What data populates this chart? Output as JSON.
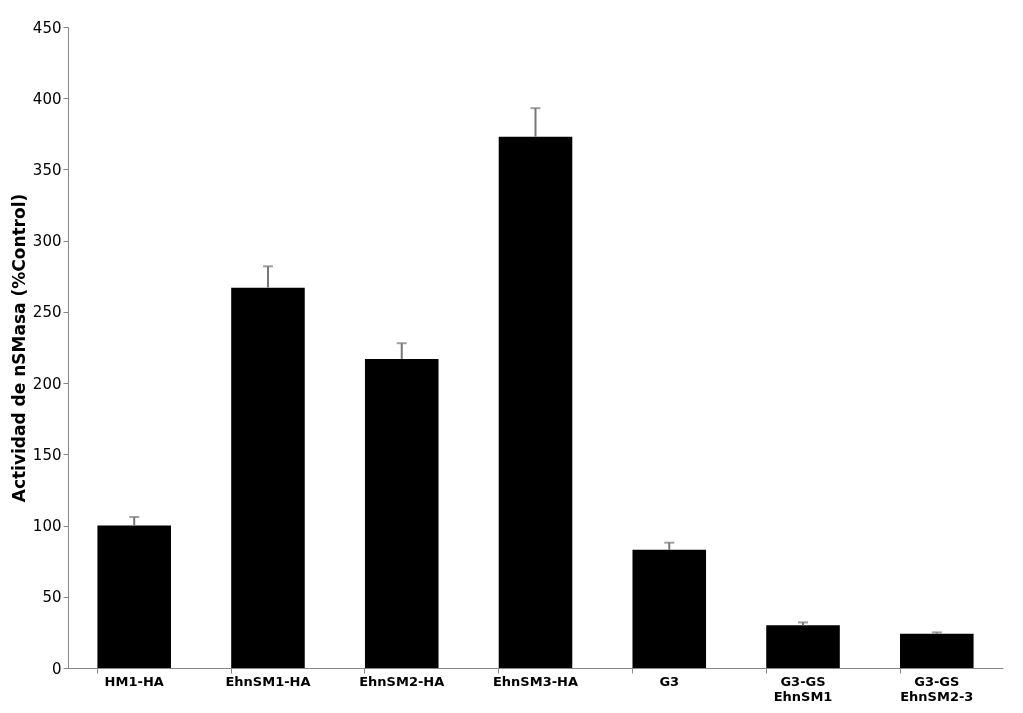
{
  "chart_data": {
    "type": "bar",
    "ylabel": "Actividad de nSMasa (%Control)",
    "categories": [
      "HM1-HA",
      "EhnSM1-HA",
      "EhnSM2-HA",
      "EhnSM3-HA",
      "G3",
      "G3-GS\nEhnSM1",
      "G3-GS\nEhnSM2-3"
    ],
    "series": [
      {
        "color": "#000000",
        "values": [
          100,
          267,
          217,
          373,
          83,
          30,
          24
        ],
        "errors": [
          [
            100,
            106
          ],
          [
            267,
            282
          ],
          [
            217,
            228
          ],
          [
            373,
            393
          ],
          [
            83,
            88
          ],
          [
            30,
            32
          ],
          [
            24,
            25
          ]
        ]
      }
    ],
    "ylim": [
      0,
      450
    ],
    "yticks": [
      0,
      50,
      100,
      150,
      200,
      250,
      300,
      350,
      400,
      450
    ],
    "grid": false
  }
}
